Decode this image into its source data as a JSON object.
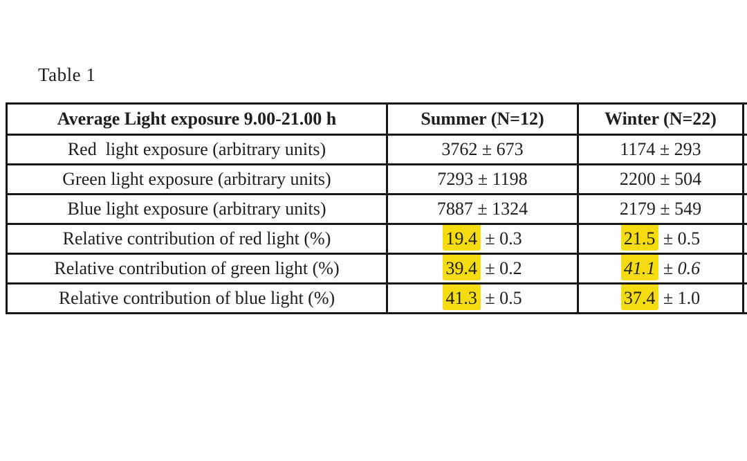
{
  "page": {
    "title": "Table 1"
  },
  "colors": {
    "highlight": "#f4dc10",
    "border": "#161616",
    "text": "#1e1e23",
    "background": "#fdfdfc"
  },
  "table": {
    "header": {
      "metric": "Average Light exposure 9.00-21.00 h",
      "summer": "Summer (N=12)",
      "winter": "Winter (N=22)",
      "cutoff": ""
    },
    "rows": [
      {
        "label": "Red  light exposure (arbitrary units)",
        "summer": {
          "value": "3762",
          "pm": "± 673",
          "highlight": false,
          "italic": false
        },
        "winter": {
          "value": "1174",
          "pm": "± 293",
          "highlight": false,
          "italic": false
        }
      },
      {
        "label": "Green light exposure (arbitrary units)",
        "summer": {
          "value": "7293",
          "pm": "± 1198",
          "highlight": false,
          "italic": false
        },
        "winter": {
          "value": "2200",
          "pm": "± 504",
          "highlight": false,
          "italic": false
        }
      },
      {
        "label": "Blue light exposure (arbitrary units)",
        "summer": {
          "value": "7887",
          "pm": "± 1324",
          "highlight": false,
          "italic": false
        },
        "winter": {
          "value": "2179",
          "pm": "± 549",
          "highlight": false,
          "italic": false
        }
      },
      {
        "label": "Relative contribution of red light (%)",
        "summer": {
          "value": "19.4",
          "pm": "± 0.3",
          "highlight": true,
          "italic": false
        },
        "winter": {
          "value": "21.5",
          "pm": "± 0.5",
          "highlight": true,
          "italic": false
        }
      },
      {
        "label": "Relative contribution of green light (%)",
        "summer": {
          "value": "39.4",
          "pm": "± 0.2",
          "highlight": true,
          "italic": false
        },
        "winter": {
          "value": "41.1",
          "pm": "± 0.6",
          "highlight": true,
          "italic": true
        }
      },
      {
        "label": "Relative contribution of blue light (%)",
        "summer": {
          "value": "41.3",
          "pm": "± 0.5",
          "highlight": true,
          "italic": false
        },
        "winter": {
          "value": "37.4",
          "pm": "± 1.0",
          "highlight": true,
          "italic": false
        }
      }
    ]
  }
}
